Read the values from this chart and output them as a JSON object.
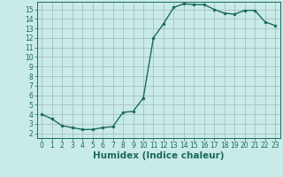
{
  "x": [
    0,
    1,
    2,
    3,
    4,
    5,
    6,
    7,
    8,
    9,
    10,
    11,
    12,
    13,
    14,
    15,
    16,
    17,
    18,
    19,
    20,
    21,
    22,
    23
  ],
  "y": [
    4.0,
    3.5,
    2.8,
    2.6,
    2.4,
    2.4,
    2.6,
    2.7,
    4.2,
    4.3,
    5.7,
    12.0,
    13.5,
    15.2,
    15.6,
    15.5,
    15.5,
    15.0,
    14.6,
    14.5,
    14.9,
    14.9,
    13.7,
    13.3
  ],
  "line_color": "#1a6b5a",
  "marker": "o",
  "marker_size": 2.0,
  "bg_color": "#c8eae8",
  "grid_color": "#aabfbd",
  "xlabel": "Humidex (Indice chaleur)",
  "xlim": [
    -0.5,
    23.5
  ],
  "ylim": [
    1.5,
    15.8
  ],
  "yticks": [
    2,
    3,
    4,
    5,
    6,
    7,
    8,
    9,
    10,
    11,
    12,
    13,
    14,
    15
  ],
  "xticks": [
    0,
    1,
    2,
    3,
    4,
    5,
    6,
    7,
    8,
    9,
    10,
    11,
    12,
    13,
    14,
    15,
    16,
    17,
    18,
    19,
    20,
    21,
    22,
    23
  ],
  "tick_fontsize": 5.5,
  "xlabel_fontsize": 7.5,
  "line_width": 1.0
}
